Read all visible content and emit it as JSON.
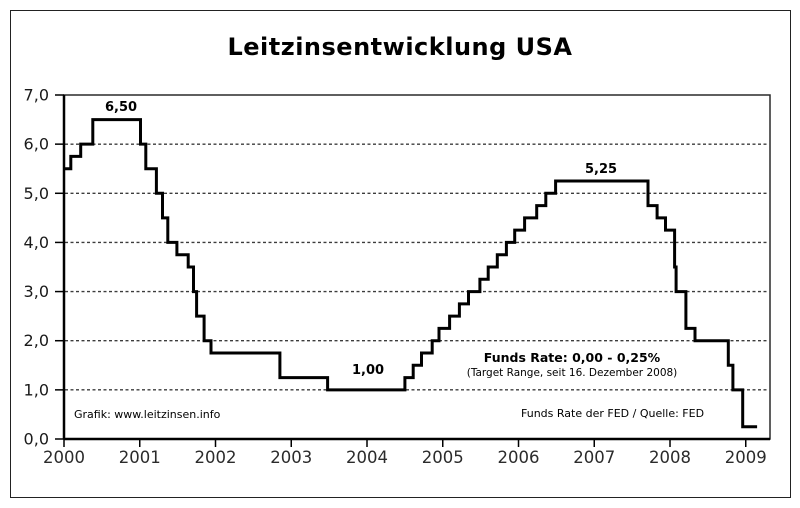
{
  "chart_data": {
    "type": "line",
    "subtype": "step",
    "title": "Leitzinsentwicklung USA",
    "xlabel": "",
    "ylabel": "",
    "xlim": [
      2000,
      2009.32
    ],
    "ylim": [
      0,
      7
    ],
    "grid": "horizontal-dashed",
    "legend": "none",
    "x_ticks": {
      "values": [
        2000,
        2001,
        2002,
        2003,
        2004,
        2005,
        2006,
        2007,
        2008,
        2009
      ],
      "labels": [
        "2000",
        "2001",
        "2002",
        "2003",
        "2004",
        "2005",
        "2006",
        "2007",
        "2008",
        "2009"
      ]
    },
    "y_ticks": {
      "values": [
        0,
        1,
        2,
        3,
        4,
        5,
        6,
        7
      ],
      "labels": [
        "0,0",
        "1,0",
        "2,0",
        "3,0",
        "4,0",
        "5,0",
        "6,0",
        "7,0"
      ]
    },
    "series": [
      {
        "name": "Funds Rate der FED (Leitzins USA, %)",
        "step_points": [
          [
            2000.0,
            5.5
          ],
          [
            2000.09,
            5.75
          ],
          [
            2000.22,
            6.0
          ],
          [
            2000.38,
            6.5
          ],
          [
            2001.01,
            6.0
          ],
          [
            2001.08,
            5.5
          ],
          [
            2001.22,
            5.0
          ],
          [
            2001.3,
            4.5
          ],
          [
            2001.37,
            4.0
          ],
          [
            2001.49,
            3.75
          ],
          [
            2001.64,
            3.5
          ],
          [
            2001.71,
            3.0
          ],
          [
            2001.75,
            2.5
          ],
          [
            2001.85,
            2.0
          ],
          [
            2001.94,
            1.75
          ],
          [
            2002.85,
            1.25
          ],
          [
            2003.48,
            1.0
          ],
          [
            2004.5,
            1.25
          ],
          [
            2004.61,
            1.5
          ],
          [
            2004.72,
            1.75
          ],
          [
            2004.86,
            2.0
          ],
          [
            2004.95,
            2.25
          ],
          [
            2005.09,
            2.5
          ],
          [
            2005.22,
            2.75
          ],
          [
            2005.34,
            3.0
          ],
          [
            2005.49,
            3.25
          ],
          [
            2005.6,
            3.5
          ],
          [
            2005.72,
            3.75
          ],
          [
            2005.84,
            4.0
          ],
          [
            2005.95,
            4.25
          ],
          [
            2006.08,
            4.5
          ],
          [
            2006.24,
            4.75
          ],
          [
            2006.36,
            5.0
          ],
          [
            2006.49,
            5.25
          ],
          [
            2007.71,
            4.75
          ],
          [
            2007.83,
            4.5
          ],
          [
            2007.94,
            4.25
          ],
          [
            2008.06,
            3.5
          ],
          [
            2008.08,
            3.0
          ],
          [
            2008.21,
            2.25
          ],
          [
            2008.33,
            2.0
          ],
          [
            2008.77,
            1.5
          ],
          [
            2008.83,
            1.0
          ],
          [
            2008.96,
            0.25
          ],
          [
            2009.15,
            0.25
          ]
        ]
      }
    ]
  },
  "annotations": {
    "peak_2000": "6,50",
    "peak_2006": "5,25",
    "low_2003": "1,00",
    "current_rate_line1": "Funds Rate: 0,00 - 0,25%",
    "current_rate_line2": "(Target Range, seit 16. Dezember 2008)",
    "credit_left": "Grafik: www.leitzinsen.info",
    "credit_right": "Funds Rate der FED / Quelle: FED"
  },
  "colors": {
    "line": "#000000",
    "grid": "#3c3c3c",
    "axis": "#000000",
    "plot_border": "#2a2a2a",
    "background": "#ffffff",
    "text": "#1a1a1a"
  }
}
